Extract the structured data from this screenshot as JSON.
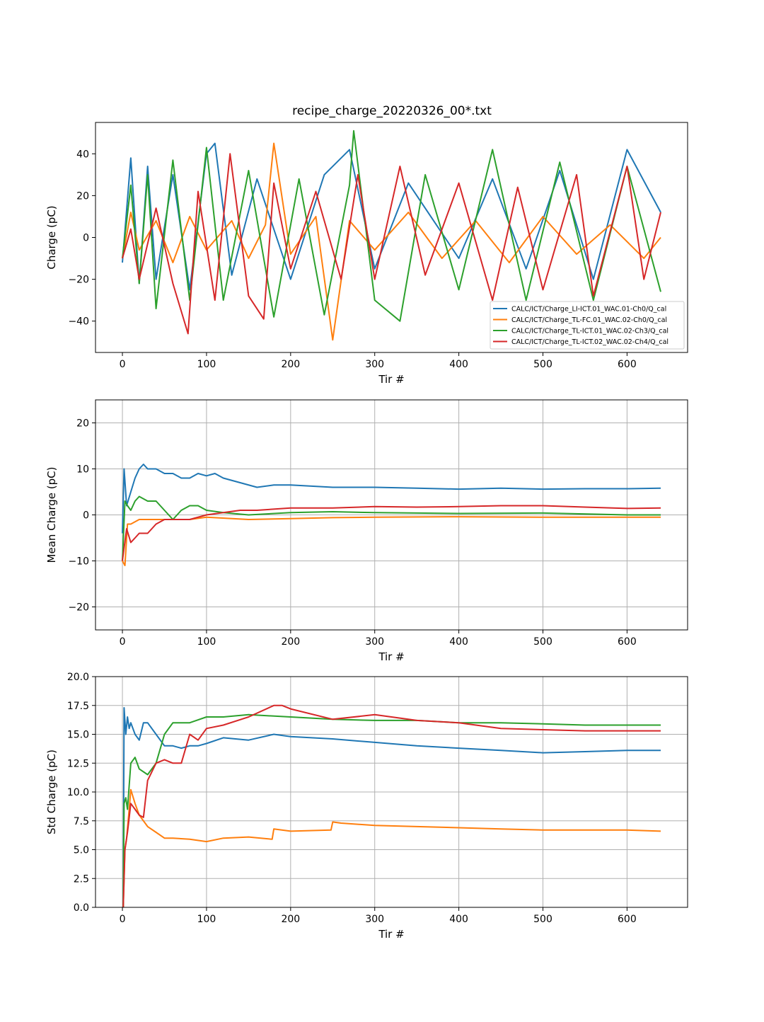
{
  "figure": {
    "title": "recipe_charge_20220326_00*.txt"
  },
  "colors": {
    "series1": "#1f77b4",
    "series2": "#ff7f0e",
    "series3": "#2ca02c",
    "series4": "#d62728",
    "grid": "#b0b0b0"
  },
  "chart_data": [
    {
      "type": "line",
      "name": "raw-charge",
      "title": "recipe_charge_20220326_00*.txt",
      "xlabel": "Tir #",
      "ylabel": "Charge (pC)",
      "xlim": [
        -32,
        672
      ],
      "ylim": [
        -55,
        55
      ],
      "xticks": [
        0,
        100,
        200,
        300,
        400,
        500,
        600
      ],
      "yticks": [
        -40,
        -20,
        0,
        20,
        40
      ],
      "ytick_labels": [
        "−40",
        "−20",
        "0",
        "20",
        "40"
      ],
      "grid": false,
      "legend_position": "lower-right",
      "series": [
        {
          "name": "CALC/ICT/Charge_LI-ICT.01_WAC.01-Ch0/Q_cal",
          "color_key": "series1",
          "x": [
            0,
            10,
            20,
            30,
            40,
            60,
            80,
            100,
            110,
            130,
            160,
            200,
            240,
            270,
            300,
            340,
            400,
            440,
            480,
            520,
            560,
            600,
            640
          ],
          "y": [
            -12,
            38,
            -22,
            34,
            -20,
            30,
            -25,
            40,
            45,
            -18,
            28,
            -20,
            30,
            42,
            -15,
            26,
            -10,
            28,
            -15,
            32,
            -20,
            42,
            12
          ]
        },
        {
          "name": "CALC/ICT/Charge_TL-FC.01_WAC.02-Ch0/Q_cal",
          "color_key": "series2",
          "x": [
            0,
            10,
            20,
            40,
            60,
            80,
            100,
            130,
            150,
            170,
            180,
            200,
            230,
            250,
            270,
            300,
            340,
            380,
            420,
            460,
            500,
            540,
            580,
            620,
            640
          ],
          "y": [
            -10,
            12,
            -6,
            8,
            -12,
            10,
            -6,
            8,
            -10,
            6,
            45,
            -8,
            10,
            -49,
            8,
            -6,
            12,
            -10,
            8,
            -12,
            10,
            -8,
            6,
            -10,
            0
          ]
        },
        {
          "name": "CALC/ICT/Charge_TL-ICT.01_WAC.02-Ch3/Q_cal",
          "color_key": "series3",
          "x": [
            0,
            10,
            20,
            30,
            40,
            60,
            80,
            100,
            120,
            150,
            180,
            210,
            240,
            270,
            275,
            300,
            330,
            360,
            400,
            440,
            480,
            520,
            560,
            600,
            640
          ],
          "y": [
            -10,
            25,
            -22,
            30,
            -34,
            37,
            -30,
            43,
            -30,
            32,
            -38,
            28,
            -37,
            25,
            51,
            -30,
            -40,
            30,
            -25,
            42,
            -30,
            36,
            -30,
            34,
            -26
          ]
        },
        {
          "name": "CALC/ICT/Charge_TL-ICT.02_WAC.02-Ch4/Q_cal",
          "color_key": "series4",
          "x": [
            0,
            10,
            20,
            40,
            60,
            78,
            90,
            110,
            128,
            150,
            168,
            180,
            200,
            230,
            260,
            280,
            300,
            330,
            360,
            400,
            440,
            470,
            500,
            540,
            560,
            600,
            620,
            640
          ],
          "y": [
            -10,
            4,
            -20,
            14,
            -22,
            -46,
            22,
            -30,
            40,
            -28,
            -39,
            26,
            -15,
            22,
            -20,
            30,
            -20,
            34,
            -18,
            26,
            -30,
            24,
            -25,
            30,
            -28,
            34,
            -20,
            12
          ]
        }
      ]
    },
    {
      "type": "line",
      "name": "mean-charge",
      "xlabel": "Tir #",
      "ylabel": "Mean Charge (pC)",
      "xlim": [
        -32,
        672
      ],
      "ylim": [
        -25,
        25
      ],
      "xticks": [
        0,
        100,
        200,
        300,
        400,
        500,
        600
      ],
      "yticks": [
        -20,
        -10,
        0,
        10,
        20
      ],
      "ytick_labels": [
        "−20",
        "−10",
        "0",
        "10",
        "20"
      ],
      "grid": true,
      "series": [
        {
          "name": "CALC/ICT/Charge_LI-ICT.01_WAC.01-Ch0/Q_cal",
          "color_key": "series1",
          "x": [
            0,
            2,
            5,
            10,
            15,
            20,
            25,
            30,
            40,
            50,
            60,
            70,
            80,
            90,
            100,
            110,
            120,
            140,
            160,
            180,
            200,
            250,
            300,
            350,
            400,
            450,
            500,
            550,
            600,
            640
          ],
          "y": [
            -4,
            10,
            2,
            5,
            8,
            10,
            11,
            10,
            10,
            9,
            9,
            8,
            8,
            9,
            8.5,
            9,
            8,
            7,
            6,
            6.5,
            6.5,
            6,
            6,
            5.8,
            5.6,
            5.8,
            5.6,
            5.7,
            5.7,
            5.8
          ]
        },
        {
          "name": "CALC/ICT/Charge_TL-FC.01_WAC.02-Ch0/Q_cal",
          "color_key": "series2",
          "x": [
            0,
            3,
            6,
            10,
            20,
            40,
            60,
            80,
            100,
            150,
            200,
            250,
            300,
            400,
            500,
            600,
            640
          ],
          "y": [
            -10,
            -11,
            -2,
            -2,
            -1,
            -1,
            -1,
            -1,
            -0.5,
            -1,
            -0.8,
            -0.6,
            -0.5,
            -0.4,
            -0.5,
            -0.5,
            -0.5
          ]
        },
        {
          "name": "CALC/ICT/Charge_TL-ICT.01_WAC.02-Ch3/Q_cal",
          "color_key": "series3",
          "x": [
            0,
            3,
            6,
            10,
            15,
            20,
            30,
            40,
            50,
            60,
            70,
            80,
            90,
            100,
            120,
            150,
            200,
            250,
            300,
            350,
            400,
            500,
            600,
            640
          ],
          "y": [
            -10,
            3,
            2,
            1,
            3,
            4,
            3,
            3,
            1,
            -1,
            1,
            2,
            2,
            1,
            0.5,
            0,
            0.5,
            0.7,
            0.5,
            0.4,
            0.3,
            0.4,
            0,
            0
          ]
        },
        {
          "name": "CALC/ICT/Charge_TL-ICT.02_WAC.02-Ch4/Q_cal",
          "color_key": "series4",
          "x": [
            0,
            5,
            10,
            15,
            20,
            30,
            40,
            50,
            60,
            80,
            100,
            120,
            140,
            160,
            200,
            250,
            300,
            350,
            400,
            450,
            500,
            550,
            600,
            640
          ],
          "y": [
            -10,
            -3,
            -6,
            -5,
            -4,
            -4,
            -2,
            -1,
            -1,
            -1,
            0,
            0.5,
            1,
            1,
            1.5,
            1.5,
            1.8,
            1.7,
            1.8,
            2,
            2,
            1.7,
            1.4,
            1.5
          ]
        }
      ]
    },
    {
      "type": "line",
      "name": "std-charge",
      "xlabel": "Tir #",
      "ylabel": "Std Charge (pC)",
      "xlim": [
        -32,
        672
      ],
      "ylim": [
        0,
        20
      ],
      "xticks": [
        0,
        100,
        200,
        300,
        400,
        500,
        600
      ],
      "yticks": [
        0,
        2.5,
        5,
        7.5,
        10,
        12.5,
        15,
        17.5,
        20
      ],
      "ytick_labels": [
        "0.0",
        "2.5",
        "5.0",
        "7.5",
        "10.0",
        "12.5",
        "15.0",
        "17.5",
        "20.0"
      ],
      "grid": true,
      "series": [
        {
          "name": "CALC/ICT/Charge_LI-ICT.01_WAC.01-Ch0/Q_cal",
          "color_key": "series1",
          "x": [
            1,
            2,
            4,
            6,
            8,
            10,
            15,
            20,
            25,
            30,
            40,
            50,
            60,
            70,
            80,
            90,
            100,
            120,
            150,
            180,
            200,
            250,
            300,
            350,
            400,
            450,
            500,
            550,
            600,
            640
          ],
          "y": [
            0,
            17.3,
            15,
            16.5,
            15.5,
            16,
            15,
            14.5,
            16,
            16,
            15,
            14,
            14,
            13.8,
            14,
            14,
            14.2,
            14.7,
            14.5,
            15,
            14.8,
            14.6,
            14.3,
            14,
            13.8,
            13.6,
            13.4,
            13.5,
            13.6,
            13.6
          ]
        },
        {
          "name": "CALC/ICT/Charge_TL-FC.01_WAC.02-Ch0/Q_cal",
          "color_key": "series2",
          "x": [
            1,
            3,
            5,
            8,
            10,
            15,
            20,
            30,
            40,
            50,
            60,
            80,
            100,
            120,
            150,
            178,
            180,
            200,
            248,
            250,
            260,
            300,
            350,
            400,
            450,
            500,
            550,
            600,
            640
          ],
          "y": [
            0,
            5,
            6,
            8.5,
            10.2,
            9,
            8,
            7,
            6.5,
            6,
            6,
            5.9,
            5.7,
            6,
            6.1,
            5.9,
            6.8,
            6.6,
            6.7,
            7.4,
            7.3,
            7.1,
            7,
            6.9,
            6.8,
            6.7,
            6.7,
            6.7,
            6.6
          ]
        },
        {
          "name": "CALC/ICT/Charge_TL-ICT.01_WAC.02-Ch3/Q_cal",
          "color_key": "series3",
          "x": [
            1,
            2,
            4,
            6,
            10,
            15,
            20,
            30,
            40,
            50,
            60,
            80,
            100,
            120,
            150,
            200,
            250,
            300,
            350,
            400,
            450,
            500,
            550,
            600,
            640
          ],
          "y": [
            0,
            9,
            9.5,
            8.5,
            12.5,
            13,
            12,
            11.5,
            12.5,
            15,
            16,
            16,
            16.5,
            16.5,
            16.7,
            16.5,
            16.3,
            16.2,
            16.2,
            16,
            16,
            15.9,
            15.8,
            15.8,
            15.8
          ]
        },
        {
          "name": "CALC/ICT/Charge_TL-ICT.02_WAC.02-Ch4/Q_cal",
          "color_key": "series4",
          "x": [
            1,
            3,
            6,
            10,
            15,
            20,
            25,
            30,
            40,
            50,
            60,
            70,
            80,
            90,
            100,
            120,
            150,
            180,
            190,
            200,
            250,
            300,
            350,
            400,
            450,
            500,
            550,
            600,
            640
          ],
          "y": [
            0,
            5,
            6.5,
            9,
            8.5,
            8,
            7.8,
            11,
            12.5,
            12.8,
            12.5,
            12.5,
            15,
            14.5,
            15.5,
            15.8,
            16.5,
            17.5,
            17.5,
            17.2,
            16.3,
            16.7,
            16.2,
            16,
            15.5,
            15.4,
            15.3,
            15.3,
            15.3
          ]
        }
      ]
    }
  ]
}
